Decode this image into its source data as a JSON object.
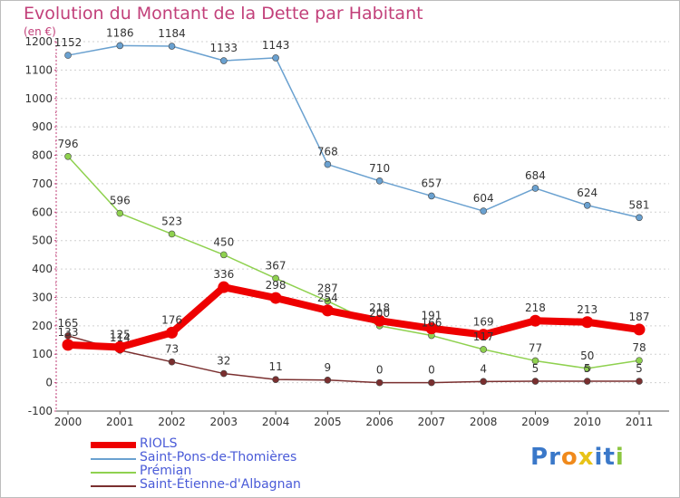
{
  "chart_data": {
    "type": "line",
    "title": "Evolution du Montant de la Dette par Habitant",
    "unit_label": "(en €)",
    "xlabel": "",
    "ylabel": "",
    "categories": [
      "2000",
      "2001",
      "2002",
      "2003",
      "2004",
      "2005",
      "2006",
      "2007",
      "2008",
      "2009",
      "2010",
      "2011"
    ],
    "ylim": [
      -100,
      1200
    ],
    "yticks": [
      -100,
      0,
      100,
      200,
      300,
      400,
      500,
      600,
      700,
      800,
      900,
      1000,
      1100,
      1200
    ],
    "grid": "horizontal dashed",
    "legend_position": "bottom-left",
    "series": [
      {
        "name": "RIOLS",
        "color": "#ee0000",
        "values": [
          133,
          125,
          176,
          336,
          298,
          254,
          218,
          191,
          169,
          218,
          213,
          187
        ]
      },
      {
        "name": "Saint-Pons-de-Thomières",
        "color": "#6aa1d0",
        "values": [
          1152,
          1186,
          1184,
          1133,
          1143,
          768,
          710,
          657,
          604,
          684,
          624,
          581
        ]
      },
      {
        "name": "Prémian",
        "color": "#8fd14f",
        "values": [
          796,
          596,
          523,
          450,
          367,
          287,
          200,
          166,
          117,
          77,
          50,
          78
        ]
      },
      {
        "name": "Saint-Étienne-d'Albagnan",
        "color": "#7a2f2f",
        "values": [
          165,
          114,
          73,
          32,
          11,
          9,
          0,
          0,
          4,
          5,
          5,
          5
        ]
      }
    ]
  },
  "logo": {
    "letters": [
      "P",
      "r",
      "o",
      "x",
      "i",
      "t",
      "i"
    ],
    "colors": [
      "#3a78c9",
      "#3a78c9",
      "#f08a1c",
      "#e8c317",
      "#3a78c9",
      "#3a78c9",
      "#8cc63f"
    ]
  }
}
